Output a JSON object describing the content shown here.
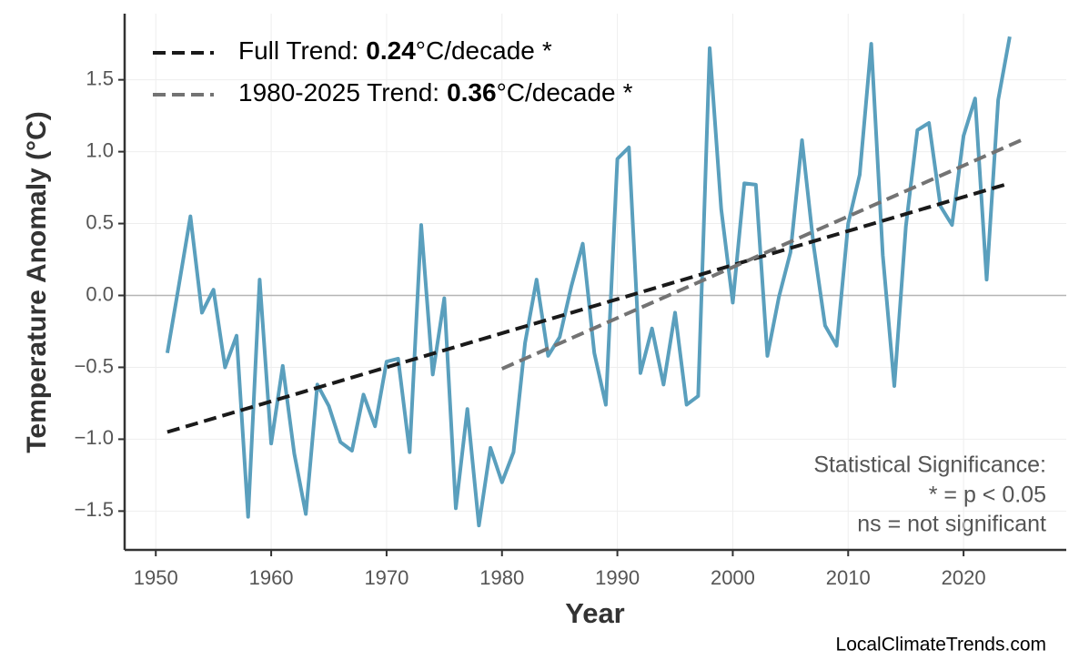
{
  "chart_data": {
    "type": "line",
    "y_label": "Temperature Anomaly (°C)",
    "x_label": "Year",
    "x": [
      1951,
      1952,
      1953,
      1954,
      1955,
      1956,
      1957,
      1958,
      1959,
      1960,
      1961,
      1962,
      1963,
      1964,
      1965,
      1966,
      1967,
      1968,
      1969,
      1970,
      1971,
      1972,
      1973,
      1974,
      1975,
      1976,
      1977,
      1978,
      1979,
      1980,
      1981,
      1982,
      1983,
      1984,
      1985,
      1986,
      1987,
      1988,
      1989,
      1990,
      1991,
      1992,
      1993,
      1994,
      1995,
      1996,
      1997,
      1998,
      1999,
      2000,
      2001,
      2002,
      2003,
      2004,
      2005,
      2006,
      2007,
      2008,
      2009,
      2010,
      2011,
      2012,
      2013,
      2014,
      2015,
      2016,
      2017,
      2018,
      2019,
      2020,
      2021,
      2022,
      2023,
      2024
    ],
    "values": [
      -0.4,
      0.07,
      0.55,
      -0.12,
      0.04,
      -0.5,
      -0.28,
      -1.54,
      0.11,
      -1.03,
      -0.49,
      -1.1,
      -1.52,
      -0.62,
      -0.77,
      -1.02,
      -1.08,
      -0.69,
      -0.91,
      -0.46,
      -0.44,
      -1.09,
      0.49,
      -0.55,
      -0.02,
      -1.48,
      -0.79,
      -1.6,
      -1.06,
      -1.3,
      -1.09,
      -0.33,
      0.11,
      -0.42,
      -0.29,
      0.06,
      0.36,
      -0.4,
      -0.76,
      0.95,
      1.03,
      -0.54,
      -0.23,
      -0.62,
      -0.12,
      -0.76,
      -0.7,
      1.72,
      0.6,
      -0.05,
      0.78,
      0.77,
      -0.42,
      -0.01,
      0.3,
      1.08,
      0.35,
      -0.21,
      -0.35,
      0.5,
      0.84,
      1.75,
      0.28,
      -0.63,
      0.48,
      1.15,
      1.2,
      0.62,
      0.49,
      1.11,
      1.37,
      0.11,
      1.36,
      1.8
    ],
    "color": "#5a9fbd",
    "trends": [
      {
        "name": "Full Trend:",
        "slope": 0.24,
        "unit": "°C/decade",
        "significance": "*",
        "color": "#1a1a1a",
        "x": [
          1951,
          2024
        ],
        "values": [
          -0.95,
          0.78
        ]
      },
      {
        "name": "1980-2025 Trend:",
        "slope": 0.36,
        "unit": "°C/decade",
        "significance": "*",
        "color": "#737373",
        "x": [
          1980,
          2025
        ],
        "values": [
          -0.51,
          1.08
        ]
      }
    ],
    "hline": 0,
    "xlim": [
      1947.3,
      2028.9
    ],
    "ylim": [
      -1.77,
      1.96
    ],
    "xticks": [
      1950,
      1960,
      1970,
      1980,
      1990,
      2000,
      2010,
      2020
    ],
    "yticks": [
      {
        "value": -1.5,
        "label": "−1.5"
      },
      {
        "value": -1.0,
        "label": "−1.0"
      },
      {
        "value": -0.5,
        "label": "−0.5"
      },
      {
        "value": 0,
        "label": "0.0"
      },
      0.5,
      {
        "value": 1.0,
        "label": "1.0"
      },
      1.5
    ],
    "grid": true,
    "legend": "upper left",
    "annotation": [
      "Statistical Significance:",
      "* = p < 0.05",
      "ns = not significant"
    ],
    "source": "LocalClimateTrends.com"
  }
}
